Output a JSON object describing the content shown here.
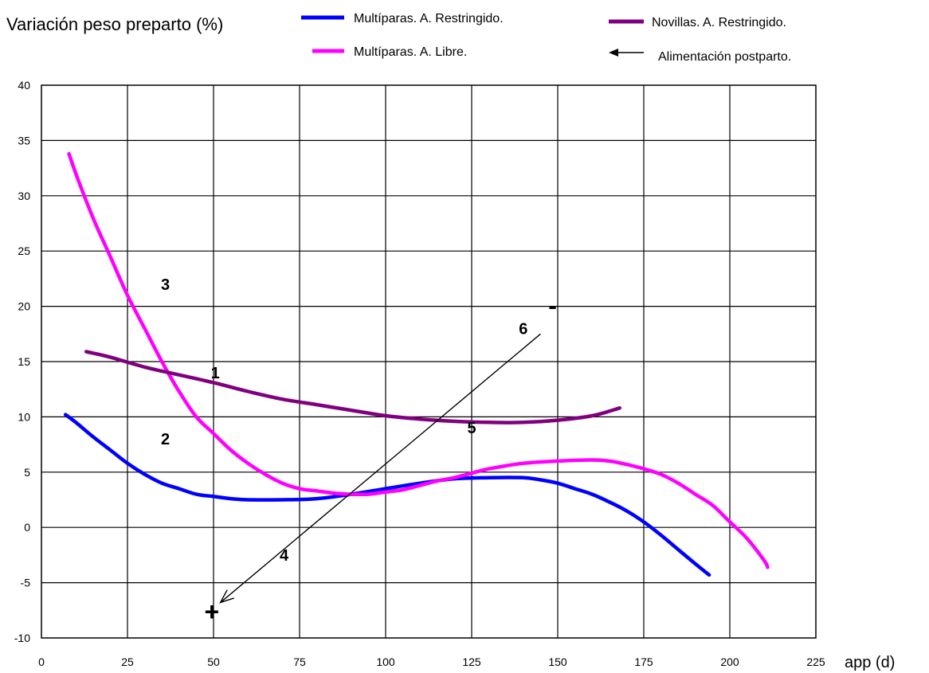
{
  "chart_data": {
    "type": "line",
    "title": "",
    "ylabel": "Variación peso preparto (%)",
    "xlabel": "app (d)",
    "xlim": [
      0,
      225
    ],
    "ylim": [
      -10,
      40
    ],
    "x_ticks": [
      "0",
      "25",
      "50",
      "75",
      "100",
      "125",
      "150",
      "175",
      "200",
      "225"
    ],
    "y_ticks": [
      "-10",
      "-5",
      "0",
      "5",
      "10",
      "15",
      "20",
      "25",
      "30",
      "35",
      "40"
    ],
    "grid": true,
    "legend_position": "top",
    "series": [
      {
        "name": "Multíparas. A. Restringido.",
        "color": "#0000ff",
        "points": [
          [
            7,
            10.2
          ],
          [
            10,
            9.5
          ],
          [
            15,
            8.2
          ],
          [
            20,
            7.0
          ],
          [
            25,
            5.8
          ],
          [
            30,
            4.8
          ],
          [
            35,
            4.0
          ],
          [
            40,
            3.5
          ],
          [
            45,
            3.0
          ],
          [
            50,
            2.8
          ],
          [
            55,
            2.6
          ],
          [
            60,
            2.5
          ],
          [
            70,
            2.5
          ],
          [
            80,
            2.6
          ],
          [
            90,
            3.0
          ],
          [
            100,
            3.5
          ],
          [
            110,
            4.0
          ],
          [
            120,
            4.4
          ],
          [
            130,
            4.5
          ],
          [
            140,
            4.5
          ],
          [
            145,
            4.3
          ],
          [
            150,
            4.0
          ],
          [
            155,
            3.5
          ],
          [
            160,
            3.0
          ],
          [
            165,
            2.3
          ],
          [
            170,
            1.5
          ],
          [
            175,
            0.5
          ],
          [
            180,
            -0.7
          ],
          [
            185,
            -2.0
          ],
          [
            190,
            -3.3
          ],
          [
            194,
            -4.3
          ]
        ]
      },
      {
        "name": "Multíparas. A. Libre.",
        "color": "#ff00ff",
        "points": [
          [
            8,
            33.8
          ],
          [
            10,
            32.0
          ],
          [
            15,
            28.0
          ],
          [
            20,
            24.5
          ],
          [
            25,
            21.0
          ],
          [
            30,
            18.0
          ],
          [
            35,
            15.0
          ],
          [
            40,
            12.3
          ],
          [
            45,
            10.0
          ],
          [
            50,
            8.5
          ],
          [
            55,
            7.0
          ],
          [
            60,
            5.8
          ],
          [
            65,
            4.8
          ],
          [
            70,
            4.0
          ],
          [
            75,
            3.5
          ],
          [
            80,
            3.3
          ],
          [
            85,
            3.1
          ],
          [
            90,
            3.0
          ],
          [
            95,
            3.0
          ],
          [
            100,
            3.2
          ],
          [
            105,
            3.4
          ],
          [
            110,
            3.8
          ],
          [
            115,
            4.2
          ],
          [
            120,
            4.5
          ],
          [
            125,
            4.9
          ],
          [
            130,
            5.3
          ],
          [
            140,
            5.8
          ],
          [
            150,
            6.0
          ],
          [
            160,
            6.1
          ],
          [
            165,
            6.0
          ],
          [
            170,
            5.7
          ],
          [
            175,
            5.3
          ],
          [
            180,
            4.8
          ],
          [
            185,
            4.0
          ],
          [
            190,
            3.0
          ],
          [
            195,
            2.0
          ],
          [
            200,
            0.5
          ],
          [
            205,
            -1.0
          ],
          [
            210,
            -3.0
          ],
          [
            211,
            -3.6
          ]
        ]
      },
      {
        "name": "Novillas. A. Restringido.",
        "color": "#800080",
        "points": [
          [
            13,
            15.9
          ],
          [
            20,
            15.4
          ],
          [
            30,
            14.5
          ],
          [
            40,
            13.8
          ],
          [
            50,
            13.1
          ],
          [
            60,
            12.3
          ],
          [
            70,
            11.6
          ],
          [
            80,
            11.1
          ],
          [
            90,
            10.6
          ],
          [
            100,
            10.1
          ],
          [
            110,
            9.8
          ],
          [
            120,
            9.6
          ],
          [
            130,
            9.5
          ],
          [
            140,
            9.5
          ],
          [
            150,
            9.7
          ],
          [
            160,
            10.1
          ],
          [
            168,
            10.8
          ]
        ]
      }
    ],
    "legend_extra": {
      "label": "Alimentación postparto.",
      "symbol": "arrow-left"
    },
    "annotations": [
      {
        "text": "1",
        "x": 50.5,
        "y": 13.5
      },
      {
        "text": "2",
        "x": 36,
        "y": 7.5
      },
      {
        "text": "3",
        "x": 36,
        "y": 21.5
      },
      {
        "text": "4",
        "x": 70.5,
        "y": -3
      },
      {
        "text": "5",
        "x": 125,
        "y": 8.5
      },
      {
        "text": "6",
        "x": 140,
        "y": 17.5
      },
      {
        "text": "-",
        "x": 148.5,
        "y": 19.3
      },
      {
        "text": "+",
        "x": 49.5,
        "y": -8.4
      }
    ],
    "arrow": {
      "from": [
        145,
        17.5
      ],
      "to": [
        52,
        -6.8
      ]
    }
  }
}
